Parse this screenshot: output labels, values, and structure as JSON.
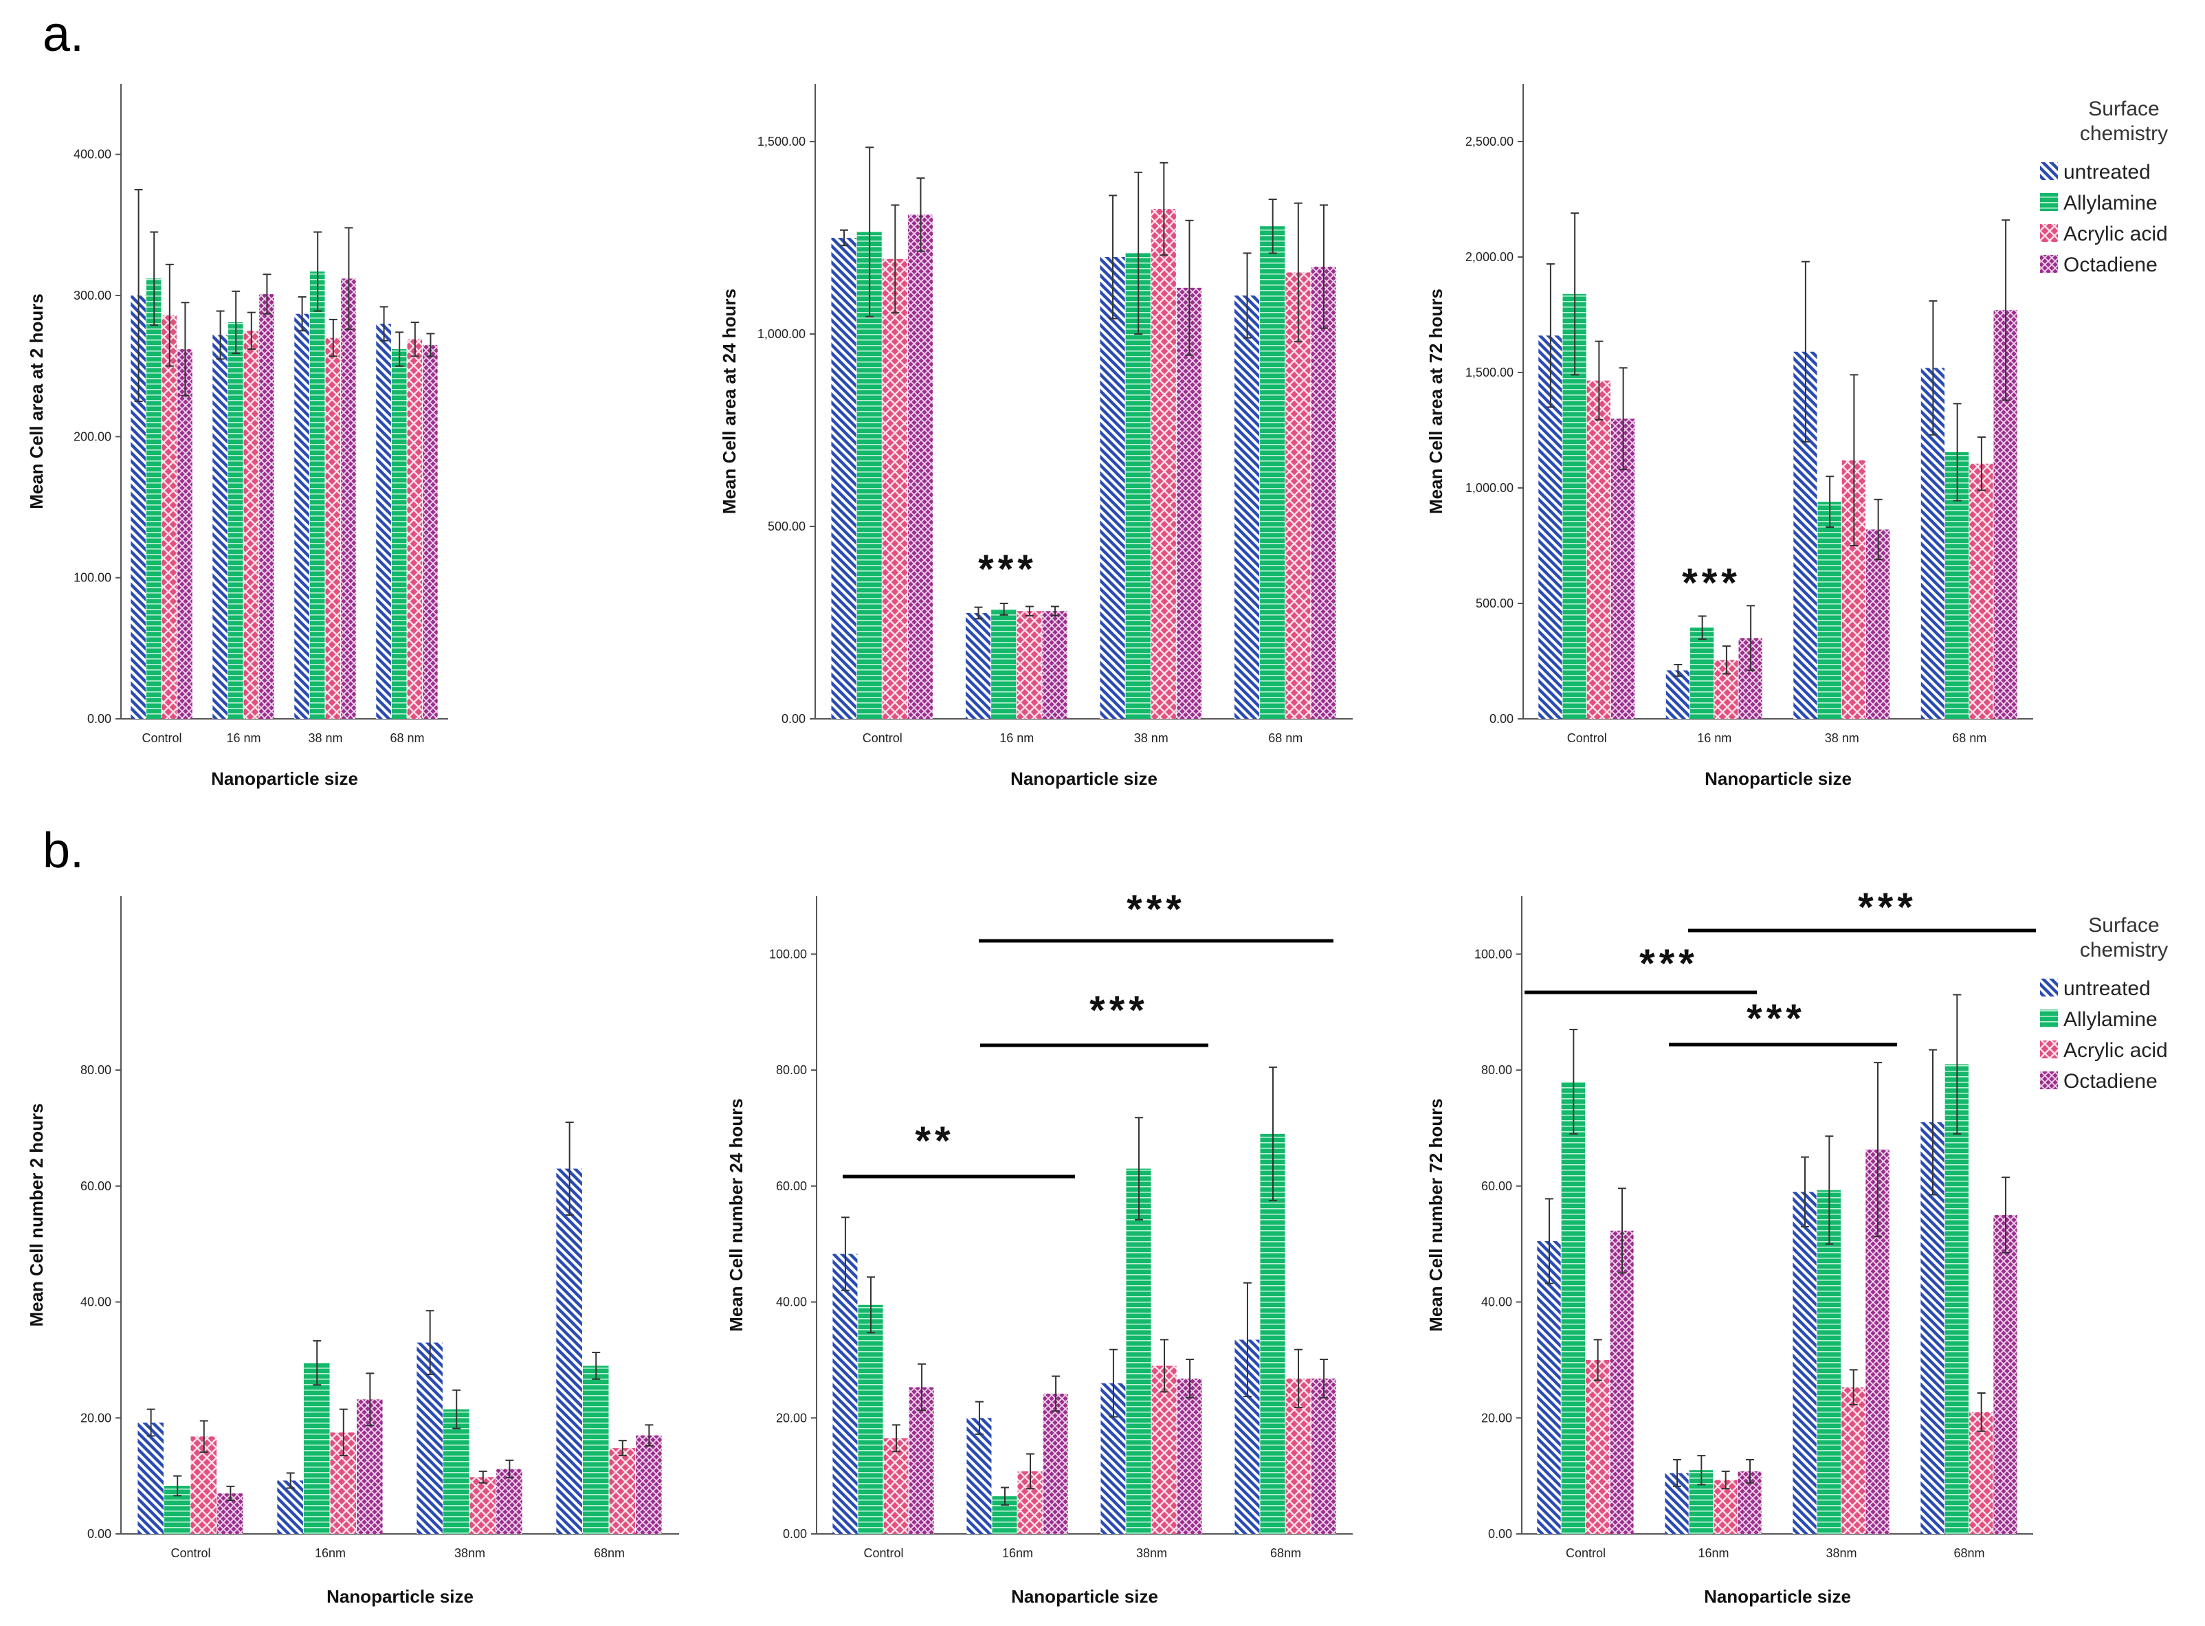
{
  "panel_labels": [
    "a.",
    "b."
  ],
  "legend": {
    "title_lines": [
      "Surface",
      "chemistry"
    ],
    "series": [
      "untreated",
      "Allylamine",
      "Acrylic acid",
      "Octadiene"
    ]
  },
  "colors": {
    "untreated": "#2a4bb4",
    "Allylamine": "#13b86a",
    "Acrylic acid": "#e2507f",
    "Octadiene": "#9b2f8f"
  },
  "chart_data": [
    {
      "id": "a1",
      "type": "bar",
      "title": "",
      "xlabel": "Nanoparticle size",
      "ylabel": "Mean Cell area at 2 hours",
      "categories": [
        "Control",
        "16 nm",
        "38 nm",
        "68 nm"
      ],
      "ylim": [
        0,
        450
      ],
      "yticks": [
        0,
        100,
        200,
        300,
        400
      ],
      "yticklabels": [
        "0.00",
        "100.00",
        "200.00",
        "300.00",
        "400.00"
      ],
      "series": [
        {
          "name": "untreated",
          "values": [
            300,
            272,
            287,
            280
          ],
          "errors": [
            75,
            17,
            12,
            12
          ]
        },
        {
          "name": "Allylamine",
          "values": [
            312,
            281,
            317,
            262
          ],
          "errors": [
            33,
            22,
            28,
            12
          ]
        },
        {
          "name": "Acrylic acid",
          "values": [
            286,
            275,
            270,
            269
          ],
          "errors": [
            36,
            13,
            13,
            12
          ]
        },
        {
          "name": "Octadiene",
          "values": [
            262,
            301,
            312,
            265
          ],
          "errors": [
            33,
            14,
            36,
            8
          ]
        }
      ],
      "annotations": []
    },
    {
      "id": "a2",
      "type": "bar",
      "title": "",
      "xlabel": "Nanoparticle size",
      "ylabel": "Mean Cell area at 24 hours",
      "categories": [
        "Control",
        "16 nm",
        "38 nm",
        "68 nm"
      ],
      "ylim": [
        0,
        1650
      ],
      "yticks": [
        0,
        500,
        1000,
        1500
      ],
      "yticklabels": [
        "0.00",
        "500.00",
        "1,000.00",
        "1,500.00"
      ],
      "series": [
        {
          "name": "untreated",
          "values": [
            1250,
            275,
            1200,
            1100
          ],
          "errors": [
            20,
            15,
            160,
            110
          ]
        },
        {
          "name": "Allylamine",
          "values": [
            1265,
            285,
            1210,
            1280
          ],
          "errors": [
            220,
            15,
            210,
            70
          ]
        },
        {
          "name": "Acrylic acid",
          "values": [
            1195,
            280,
            1325,
            1160
          ],
          "errors": [
            140,
            12,
            120,
            180
          ]
        },
        {
          "name": "Octadiene",
          "values": [
            1310,
            280,
            1120,
            1175
          ],
          "errors": [
            95,
            12,
            175,
            160
          ]
        }
      ],
      "annotations": [
        {
          "text": "***",
          "category": "16 nm"
        }
      ]
    },
    {
      "id": "a3",
      "type": "bar",
      "title": "",
      "xlabel": "Nanoparticle size",
      "ylabel": "Mean Cell area at 72 hours",
      "categories": [
        "Control",
        "16 nm",
        "38 nm",
        "68 nm"
      ],
      "ylim": [
        0,
        2750
      ],
      "yticks": [
        0,
        500,
        1000,
        1500,
        2000,
        2500
      ],
      "yticklabels": [
        "0.00",
        "500.00",
        "1,000.00",
        "1,500.00",
        "2,000.00",
        "2,500.00"
      ],
      "series": [
        {
          "name": "untreated",
          "values": [
            1660,
            210,
            1590,
            1520
          ],
          "errors": [
            310,
            25,
            390,
            290
          ]
        },
        {
          "name": "Allylamine",
          "values": [
            1840,
            395,
            940,
            1155
          ],
          "errors": [
            350,
            50,
            110,
            210
          ]
        },
        {
          "name": "Acrylic acid",
          "values": [
            1465,
            255,
            1120,
            1105
          ],
          "errors": [
            170,
            60,
            370,
            115
          ]
        },
        {
          "name": "Octadiene",
          "values": [
            1300,
            350,
            820,
            1770
          ],
          "errors": [
            220,
            140,
            130,
            390
          ]
        }
      ],
      "annotations": [
        {
          "text": "***",
          "category": "16 nm"
        }
      ]
    },
    {
      "id": "b1",
      "type": "bar",
      "title": "",
      "xlabel": "Nanoparticle size",
      "ylabel": "Mean Cell number 2 hours",
      "categories": [
        "Control",
        "16nm",
        "38nm",
        "68nm"
      ],
      "ylim": [
        0,
        110
      ],
      "yticks": [
        0,
        20,
        40,
        60,
        80
      ],
      "yticklabels": [
        "0.00",
        "20.00",
        "40.00",
        "60.00",
        "80.00"
      ],
      "series": [
        {
          "name": "untreated",
          "values": [
            19.2,
            9.2,
            33,
            63
          ],
          "errors": [
            2.3,
            1.3,
            5.5,
            8
          ]
        },
        {
          "name": "Allylamine",
          "values": [
            8.3,
            29.5,
            21.5,
            29
          ],
          "errors": [
            1.7,
            3.8,
            3.3,
            2.3
          ]
        },
        {
          "name": "Acrylic acid",
          "values": [
            16.8,
            17.5,
            9.8,
            14.8
          ],
          "errors": [
            2.7,
            4,
            1,
            1.3
          ]
        },
        {
          "name": "Octadiene",
          "values": [
            7,
            23.2,
            11.2,
            17
          ],
          "errors": [
            1.2,
            4.5,
            1.5,
            1.8
          ]
        }
      ],
      "annotations": []
    },
    {
      "id": "b2",
      "type": "bar",
      "title": "",
      "xlabel": "Nanoparticle size",
      "ylabel": "Mean Cell number 24 hours",
      "categories": [
        "Control",
        "16nm",
        "38nm",
        "68nm"
      ],
      "ylim": [
        0,
        110
      ],
      "yticks": [
        0,
        20,
        40,
        60,
        80,
        100
      ],
      "yticklabels": [
        "0.00",
        "20.00",
        "40.00",
        "60.00",
        "80.00",
        "100.00"
      ],
      "series": [
        {
          "name": "untreated",
          "values": [
            48.3,
            20,
            26,
            33.5
          ],
          "errors": [
            6.3,
            2.8,
            5.8,
            9.8
          ]
        },
        {
          "name": "Allylamine",
          "values": [
            39.5,
            6.5,
            63,
            69
          ],
          "errors": [
            4.8,
            1.5,
            8.8,
            11.5
          ]
        },
        {
          "name": "Acrylic acid",
          "values": [
            16.5,
            10.8,
            29,
            26.8
          ],
          "errors": [
            2.3,
            3,
            4.5,
            5
          ]
        },
        {
          "name": "Octadiene",
          "values": [
            25.3,
            24.2,
            26.8,
            26.8
          ],
          "errors": [
            4,
            3,
            3.3,
            3.3
          ]
        }
      ],
      "annotations": [
        {
          "text": "***"
        },
        {
          "text": "***"
        },
        {
          "text": "**"
        }
      ]
    },
    {
      "id": "b3",
      "type": "bar",
      "title": "",
      "xlabel": "Nanoparticle size",
      "ylabel": "Mean Cell number 72 hours",
      "categories": [
        "Control",
        "16nm",
        "38nm",
        "68nm"
      ],
      "ylim": [
        0,
        110
      ],
      "yticks": [
        0,
        20,
        40,
        60,
        80,
        100
      ],
      "yticklabels": [
        "0.00",
        "20.00",
        "40.00",
        "60.00",
        "80.00",
        "100.00"
      ],
      "series": [
        {
          "name": "untreated",
          "values": [
            50.5,
            10.5,
            59,
            71
          ],
          "errors": [
            7.3,
            2.3,
            6,
            12.5
          ]
        },
        {
          "name": "Allylamine",
          "values": [
            78,
            11,
            59.3,
            81
          ],
          "errors": [
            9,
            2.5,
            9.3,
            12
          ]
        },
        {
          "name": "Acrylic acid",
          "values": [
            30,
            9.3,
            25.3,
            21
          ],
          "errors": [
            3.5,
            1.5,
            3,
            3.3
          ]
        },
        {
          "name": "Octadiene",
          "values": [
            52.3,
            10.8,
            66.3,
            55
          ],
          "errors": [
            7.3,
            2,
            15,
            6.5
          ]
        }
      ],
      "annotations": [
        {
          "text": "***"
        },
        {
          "text": "***"
        },
        {
          "text": "***"
        }
      ]
    }
  ]
}
